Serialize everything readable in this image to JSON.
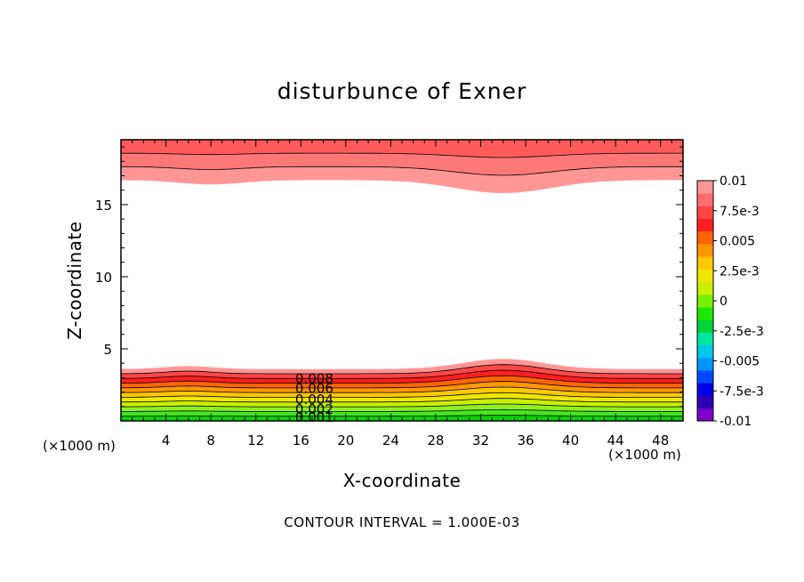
{
  "chart_data": {
    "type": "contour",
    "title": "disturbunce of Exner",
    "xlabel": "X-coordinate",
    "ylabel": "Z-coordinate",
    "x_unit": "(×1000 m)",
    "z_unit": "(×1000 m)",
    "xlim": [
      0,
      50
    ],
    "ylim": [
      0,
      19.5
    ],
    "x_ticks": [
      4,
      8,
      12,
      16,
      20,
      24,
      28,
      32,
      36,
      40,
      44,
      48
    ],
    "y_ticks": [
      5,
      10,
      15
    ],
    "contour_interval_text": "CONTOUR INTERVAL = 1.000E-03",
    "contour_labels": [
      "0.008",
      "0.006",
      "0.004",
      "0.002",
      "0.001"
    ],
    "colorbar": {
      "range": [
        -0.01,
        0.01
      ],
      "tick_labels": [
        "0.01",
        "7.5e-3",
        "0.005",
        "2.5e-3",
        "0",
        "-2.5e-3",
        "-0.005",
        "-7.5e-3",
        "-0.01"
      ],
      "colors": [
        "#7f00c8",
        "#2d00b4",
        "#0000e6",
        "#0048ff",
        "#0096ff",
        "#00c8e6",
        "#00e6a0",
        "#00d23c",
        "#1ee600",
        "#78f000",
        "#c8f000",
        "#f0e600",
        "#ffc800",
        "#ff9600",
        "#ff6400",
        "#ff1e1e",
        "#ff4646",
        "#ff6e6e",
        "#ff9696"
      ]
    },
    "bottom_layer": {
      "z_range": [
        0,
        3.6
      ],
      "value_range": [
        0,
        0.01
      ],
      "colors": [
        "#0ad20a",
        "#46e61e",
        "#8ef01e",
        "#c8f000",
        "#f0e600",
        "#ffc800",
        "#ff9600",
        "#ff6400",
        "#ff1e1e",
        "#ff4646",
        "#ff9696"
      ],
      "bumps": [
        {
          "x": 6,
          "amp": 0.2,
          "width": 3
        },
        {
          "x": 34,
          "amp": 0.7,
          "width": 5
        }
      ]
    },
    "top_layer": {
      "z_range": [
        16.7,
        19.5
      ],
      "colors": [
        "#ff9696",
        "#ff7878",
        "#ff5a5a"
      ],
      "dips": [
        {
          "x": 8,
          "amp": 0.3,
          "width": 4
        },
        {
          "x": 34,
          "amp": 0.9,
          "width": 6
        }
      ]
    }
  }
}
